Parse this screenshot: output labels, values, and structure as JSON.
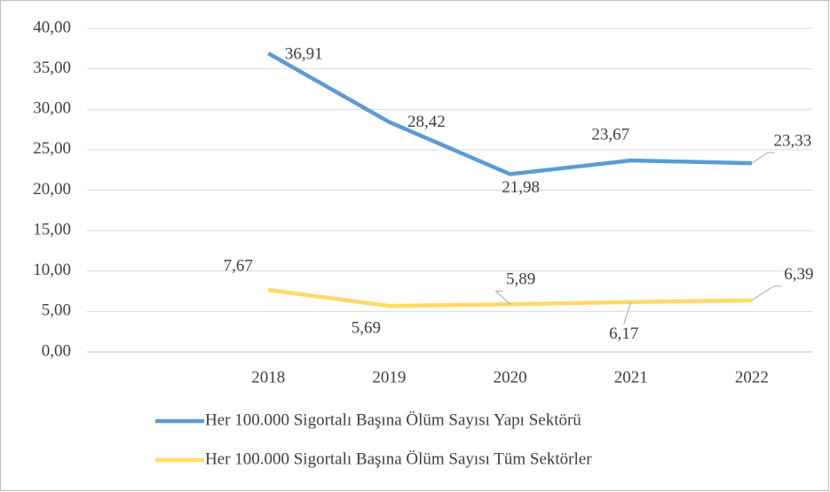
{
  "chart_data": {
    "type": "line",
    "categories": [
      null,
      "2018",
      "2019",
      "2020",
      "2021",
      "2022"
    ],
    "series": [
      {
        "name": "Her 100.000 Sigortalı Başına Ölüm Sayısı Yapı Sektörü",
        "color": "#5b9bd5",
        "values": [
          null,
          36.91,
          28.42,
          21.98,
          23.67,
          23.33
        ],
        "value_labels": [
          null,
          "36,91",
          "28,42",
          "21,98",
          "23,67",
          "23,33"
        ]
      },
      {
        "name": "Her 100.000 Sigortalı Başına Ölüm Sayısı Tüm Sektörler",
        "color": "#ffd966",
        "values": [
          null,
          7.67,
          5.69,
          5.89,
          6.17,
          6.39
        ],
        "value_labels": [
          null,
          "7,67",
          "5,69",
          "5,89",
          "6,17",
          "6,39"
        ]
      }
    ],
    "ylim": [
      0,
      40
    ],
    "yticks": [
      {
        "value": 0,
        "label": "0,00"
      },
      {
        "value": 5,
        "label": "5,00"
      },
      {
        "value": 10,
        "label": "10,00"
      },
      {
        "value": 15,
        "label": "15,00"
      },
      {
        "value": 20,
        "label": "20,00"
      },
      {
        "value": 25,
        "label": "25,00"
      },
      {
        "value": 30,
        "label": "30,00"
      },
      {
        "value": 35,
        "label": "35,00"
      },
      {
        "value": 40,
        "label": "40,00"
      }
    ],
    "grid": true,
    "legend": "bottom"
  }
}
